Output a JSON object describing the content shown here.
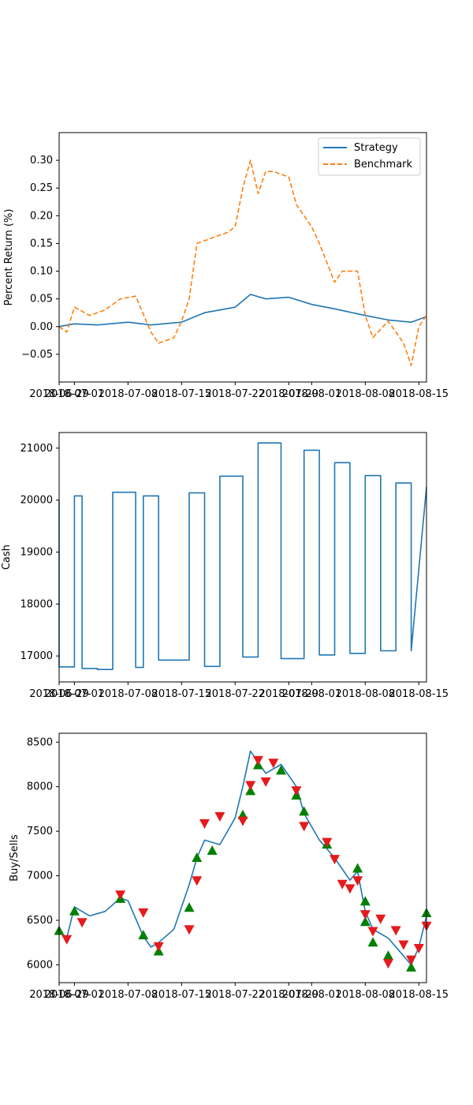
{
  "colors": {
    "strategy": "#1f77b4",
    "benchmark": "#ff7f0e",
    "buy": "#008000",
    "sell": "#e41a1c"
  },
  "chart_data": [
    {
      "type": "line",
      "ylabel": "Percent Return (%)",
      "xlim": [
        "2018-06-29",
        "2018-08-16"
      ],
      "ylim": [
        -0.1,
        0.35
      ],
      "xticks": [
        "2018-06-29",
        "2018-07-01",
        "2018-07-08",
        "2018-07-15",
        "2018-07-22",
        "2018-07-29",
        "2018-08-01",
        "2018-08-08",
        "2018-08-15"
      ],
      "yticks": [
        -0.05,
        0.0,
        0.05,
        0.1,
        0.15,
        0.2,
        0.25,
        0.3
      ],
      "ytick_labels": [
        "−0.05",
        "0.00",
        "0.05",
        "0.10",
        "0.15",
        "0.20",
        "0.25",
        "0.30"
      ],
      "legend": "top-right",
      "series": [
        {
          "name": "Strategy",
          "style": "solid",
          "x": [
            "2018-06-29",
            "2018-07-01",
            "2018-07-04",
            "2018-07-08",
            "2018-07-11",
            "2018-07-15",
            "2018-07-18",
            "2018-07-22",
            "2018-07-24",
            "2018-07-26",
            "2018-07-29",
            "2018-08-01",
            "2018-08-04",
            "2018-08-08",
            "2018-08-11",
            "2018-08-14",
            "2018-08-16"
          ],
          "y": [
            0.0,
            0.005,
            0.003,
            0.008,
            0.003,
            0.008,
            0.025,
            0.035,
            0.058,
            0.05,
            0.053,
            0.04,
            0.032,
            0.02,
            0.012,
            0.008,
            0.018
          ]
        },
        {
          "name": "Benchmark",
          "style": "dashed",
          "x": [
            "2018-06-29",
            "2018-06-30",
            "2018-07-01",
            "2018-07-03",
            "2018-07-05",
            "2018-07-07",
            "2018-07-09",
            "2018-07-11",
            "2018-07-12",
            "2018-07-14",
            "2018-07-15",
            "2018-07-16",
            "2018-07-17",
            "2018-07-19",
            "2018-07-21",
            "2018-07-22",
            "2018-07-23",
            "2018-07-24",
            "2018-07-25",
            "2018-07-26",
            "2018-07-27",
            "2018-07-29",
            "2018-07-30",
            "2018-08-01",
            "2018-08-02",
            "2018-08-04",
            "2018-08-05",
            "2018-08-07",
            "2018-08-08",
            "2018-08-09",
            "2018-08-11",
            "2018-08-13",
            "2018-08-14",
            "2018-08-15",
            "2018-08-16"
          ],
          "y": [
            0.0,
            -0.01,
            0.035,
            0.02,
            0.03,
            0.05,
            0.055,
            -0.01,
            -0.03,
            -0.02,
            0.01,
            0.05,
            0.15,
            0.16,
            0.17,
            0.18,
            0.25,
            0.3,
            0.24,
            0.28,
            0.28,
            0.27,
            0.22,
            0.18,
            0.15,
            0.08,
            0.1,
            0.1,
            0.02,
            -0.02,
            0.01,
            -0.03,
            -0.07,
            0.0,
            0.02
          ]
        }
      ]
    },
    {
      "type": "line",
      "ylabel": "Cash",
      "xlim": [
        "2018-06-29",
        "2018-08-16"
      ],
      "ylim": [
        16500,
        21300
      ],
      "xticks": [
        "2018-06-29",
        "2018-07-01",
        "2018-07-08",
        "2018-07-15",
        "2018-07-22",
        "2018-07-29",
        "2018-08-01",
        "2018-08-08",
        "2018-08-15"
      ],
      "yticks": [
        17000,
        18000,
        19000,
        20000,
        21000
      ],
      "series": [
        {
          "style": "steps",
          "x": [
            "2018-06-29",
            "2018-06-29",
            "2018-07-01",
            "2018-07-01",
            "2018-07-02",
            "2018-07-02",
            "2018-07-04",
            "2018-07-04",
            "2018-07-06",
            "2018-07-06",
            "2018-07-09",
            "2018-07-09",
            "2018-07-10",
            "2018-07-10",
            "2018-07-12",
            "2018-07-12",
            "2018-07-16",
            "2018-07-16",
            "2018-07-18",
            "2018-07-18",
            "2018-07-20",
            "2018-07-20",
            "2018-07-23",
            "2018-07-23",
            "2018-07-25",
            "2018-07-25",
            "2018-07-28",
            "2018-07-28",
            "2018-07-31",
            "2018-07-31",
            "2018-08-02",
            "2018-08-02",
            "2018-08-04",
            "2018-08-04",
            "2018-08-06",
            "2018-08-06",
            "2018-08-08",
            "2018-08-08",
            "2018-08-10",
            "2018-08-10",
            "2018-08-12",
            "2018-08-12",
            "2018-08-14",
            "2018-08-14",
            "2018-08-16"
          ],
          "y": [
            20000,
            16790,
            16790,
            20080,
            20080,
            16760,
            16760,
            16740,
            16740,
            20150,
            20150,
            16780,
            16780,
            20080,
            20080,
            16920,
            16920,
            20140,
            20140,
            16800,
            16800,
            20460,
            20460,
            16980,
            16980,
            21100,
            21100,
            16950,
            16950,
            20960,
            20960,
            17020,
            17020,
            20720,
            20720,
            17050,
            17050,
            20470,
            20470,
            17100,
            17100,
            20330,
            20330,
            17100,
            20250
          ]
        }
      ]
    },
    {
      "type": "line",
      "ylabel": "Buy/Sells",
      "xlim": [
        "2018-06-29",
        "2018-08-16"
      ],
      "ylim": [
        5800,
        8600
      ],
      "xticks": [
        "2018-06-29",
        "2018-07-01",
        "2018-07-08",
        "2018-07-15",
        "2018-07-22",
        "2018-07-29",
        "2018-08-01",
        "2018-08-08",
        "2018-08-15"
      ],
      "yticks": [
        6000,
        6500,
        7000,
        7500,
        8000,
        8500
      ],
      "series": [
        {
          "name": "price",
          "x": [
            "2018-06-29",
            "2018-06-30",
            "2018-07-01",
            "2018-07-03",
            "2018-07-05",
            "2018-07-07",
            "2018-07-08",
            "2018-07-10",
            "2018-07-11",
            "2018-07-12",
            "2018-07-14",
            "2018-07-16",
            "2018-07-17",
            "2018-07-18",
            "2018-07-20",
            "2018-07-22",
            "2018-07-23",
            "2018-07-24",
            "2018-07-26",
            "2018-07-28",
            "2018-07-30",
            "2018-07-31",
            "2018-08-02",
            "2018-08-04",
            "2018-08-06",
            "2018-08-07",
            "2018-08-08",
            "2018-08-09",
            "2018-08-11",
            "2018-08-13",
            "2018-08-14",
            "2018-08-15",
            "2018-08-16"
          ],
          "y": [
            6380,
            6300,
            6650,
            6550,
            6600,
            6750,
            6720,
            6320,
            6200,
            6250,
            6400,
            6900,
            7200,
            7400,
            7350,
            7650,
            8000,
            8400,
            8150,
            8250,
            8000,
            7700,
            7400,
            7200,
            6950,
            7050,
            6600,
            6400,
            6300,
            6100,
            6000,
            6200,
            6550
          ]
        }
      ],
      "buys": [
        {
          "x": "2018-06-29",
          "y": 6380
        },
        {
          "x": "2018-07-01",
          "y": 6600
        },
        {
          "x": "2018-07-07",
          "y": 6740
        },
        {
          "x": "2018-07-10",
          "y": 6330
        },
        {
          "x": "2018-07-12",
          "y": 6150
        },
        {
          "x": "2018-07-16",
          "y": 6640
        },
        {
          "x": "2018-07-17",
          "y": 7200
        },
        {
          "x": "2018-07-19",
          "y": 7280
        },
        {
          "x": "2018-07-23",
          "y": 7680
        },
        {
          "x": "2018-07-24",
          "y": 7950
        },
        {
          "x": "2018-07-25",
          "y": 8240
        },
        {
          "x": "2018-07-28",
          "y": 8180
        },
        {
          "x": "2018-07-30",
          "y": 7900
        },
        {
          "x": "2018-07-31",
          "y": 7720
        },
        {
          "x": "2018-08-03",
          "y": 7350
        },
        {
          "x": "2018-08-07",
          "y": 7080
        },
        {
          "x": "2018-08-08",
          "y": 6710
        },
        {
          "x": "2018-08-08",
          "y": 6480
        },
        {
          "x": "2018-08-09",
          "y": 6250
        },
        {
          "x": "2018-08-11",
          "y": 6100
        },
        {
          "x": "2018-08-14",
          "y": 5970
        },
        {
          "x": "2018-08-16",
          "y": 6580
        }
      ],
      "sells": [
        {
          "x": "2018-06-30",
          "y": 6290
        },
        {
          "x": "2018-07-02",
          "y": 6480
        },
        {
          "x": "2018-07-07",
          "y": 6790
        },
        {
          "x": "2018-07-10",
          "y": 6590
        },
        {
          "x": "2018-07-12",
          "y": 6210
        },
        {
          "x": "2018-07-16",
          "y": 6400
        },
        {
          "x": "2018-07-17",
          "y": 6950
        },
        {
          "x": "2018-07-18",
          "y": 7590
        },
        {
          "x": "2018-07-20",
          "y": 7670
        },
        {
          "x": "2018-07-23",
          "y": 7620
        },
        {
          "x": "2018-07-24",
          "y": 8020
        },
        {
          "x": "2018-07-25",
          "y": 8300
        },
        {
          "x": "2018-07-26",
          "y": 8060
        },
        {
          "x": "2018-07-27",
          "y": 8270
        },
        {
          "x": "2018-07-30",
          "y": 7960
        },
        {
          "x": "2018-07-31",
          "y": 7560
        },
        {
          "x": "2018-08-03",
          "y": 7380
        },
        {
          "x": "2018-08-04",
          "y": 7190
        },
        {
          "x": "2018-08-05",
          "y": 6910
        },
        {
          "x": "2018-08-06",
          "y": 6860
        },
        {
          "x": "2018-08-07",
          "y": 6950
        },
        {
          "x": "2018-08-08",
          "y": 6570
        },
        {
          "x": "2018-08-09",
          "y": 6380
        },
        {
          "x": "2018-08-10",
          "y": 6520
        },
        {
          "x": "2018-08-11",
          "y": 6020
        },
        {
          "x": "2018-08-12",
          "y": 6390
        },
        {
          "x": "2018-08-13",
          "y": 6230
        },
        {
          "x": "2018-08-14",
          "y": 6060
        },
        {
          "x": "2018-08-15",
          "y": 6190
        },
        {
          "x": "2018-08-16",
          "y": 6440
        }
      ]
    }
  ]
}
